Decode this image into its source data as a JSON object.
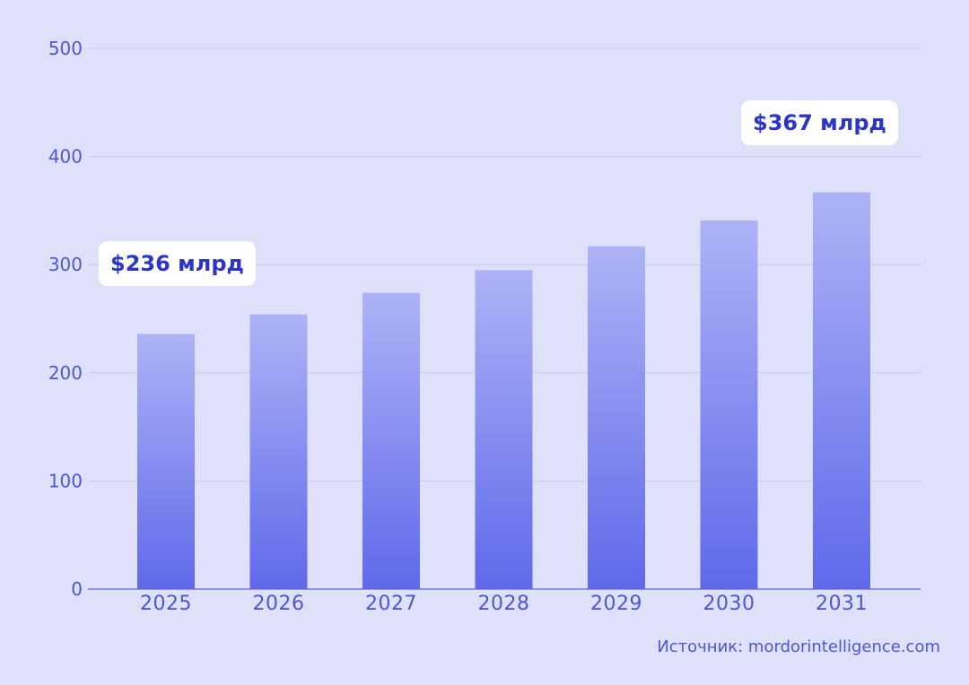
{
  "chart_data": {
    "type": "bar",
    "categories": [
      "2025",
      "2026",
      "2027",
      "2028",
      "2029",
      "2030",
      "2031"
    ],
    "values": [
      236,
      254,
      274,
      295,
      317,
      341,
      367
    ],
    "ylim": [
      0,
      500
    ],
    "yticks": [
      "0",
      "100",
      "200",
      "300",
      "400",
      "500"
    ],
    "grid": true,
    "bar_gradient": {
      "top": "#aeb3f6",
      "bottom": "#5f69ea"
    },
    "annotations": {
      "first": "$236 млрд",
      "last": "$367 млрд"
    },
    "source": "Источник: mordorintelligence.com"
  },
  "colors": {
    "background": "#dfe1fb",
    "grid": "#c5c8f5",
    "axis": "#5b63d9",
    "tick_text": "#4c56d6",
    "callout_text": "#2b35c8",
    "callout_bg": "#ffffff"
  }
}
